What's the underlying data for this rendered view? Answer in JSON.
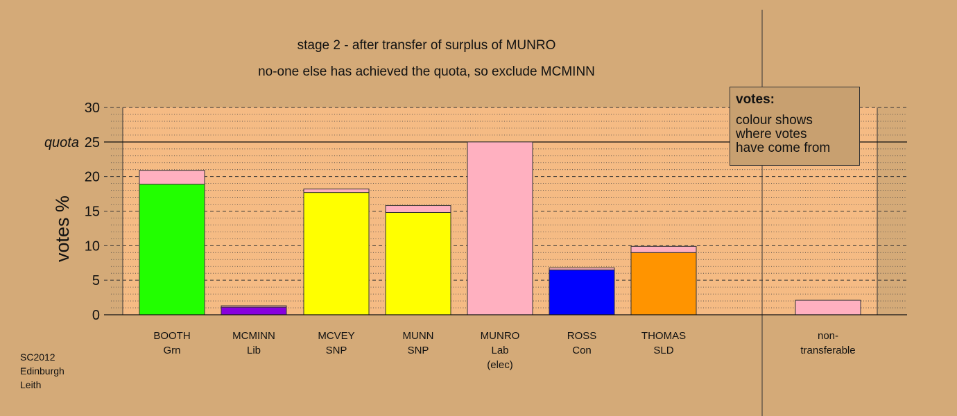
{
  "titles": {
    "line1": "stage 2 - after transfer of surplus of MUNRO",
    "line2": "no-one else has achieved the quota, so exclude MCMINN"
  },
  "credit": [
    "SC2012",
    "Edinburgh",
    "Leith"
  ],
  "legend": {
    "title": "votes:",
    "lines": [
      "colour shows",
      "where votes",
      "have come from"
    ]
  },
  "chart_data": {
    "type": "bar",
    "stacked": true,
    "ylabel": "votes %",
    "ylim": [
      0,
      30
    ],
    "yticks": [
      0,
      5,
      10,
      15,
      20,
      25,
      30
    ],
    "quota_label": "quota",
    "quota": 25,
    "grid": true,
    "categories": [
      [
        "BOOTH",
        "Grn"
      ],
      [
        "MCMINN",
        "Lib"
      ],
      [
        "MCVEY",
        "SNP"
      ],
      [
        "MUNN",
        "SNP"
      ],
      [
        "MUNRO",
        "Lab",
        "(elec)"
      ],
      [
        "ROSS",
        "Con"
      ],
      [
        "THOMAS",
        "SLD"
      ],
      [
        "non-",
        "transferable"
      ]
    ],
    "segments": [
      [
        {
          "value": 18.9,
          "color": "#22ff00"
        },
        {
          "value": 2.0,
          "color": "#ffb0c0"
        }
      ],
      [
        {
          "value": 1.1,
          "color": "#8800dd"
        },
        {
          "value": 0.2,
          "color": "#ffb0c0"
        }
      ],
      [
        {
          "value": 17.7,
          "color": "#ffff00"
        },
        {
          "value": 0.5,
          "color": "#ffb0c0"
        }
      ],
      [
        {
          "value": 14.8,
          "color": "#ffff00"
        },
        {
          "value": 1.0,
          "color": "#ffb0c0"
        }
      ],
      [
        {
          "value": 25.0,
          "color": "#ffb0c0"
        }
      ],
      [
        {
          "value": 6.5,
          "color": "#0000ff"
        },
        {
          "value": 0.3,
          "color": "#ffb0c0"
        }
      ],
      [
        {
          "value": 9.0,
          "color": "#ff9400"
        },
        {
          "value": 0.9,
          "color": "#ffb0c0"
        }
      ],
      [
        {
          "value": 2.1,
          "color": "#ffb0c0"
        }
      ]
    ],
    "colors": {
      "page_background": "#d4aa78",
      "plot_background": "#f5bb84",
      "transfer": "#ffb0c0"
    }
  }
}
